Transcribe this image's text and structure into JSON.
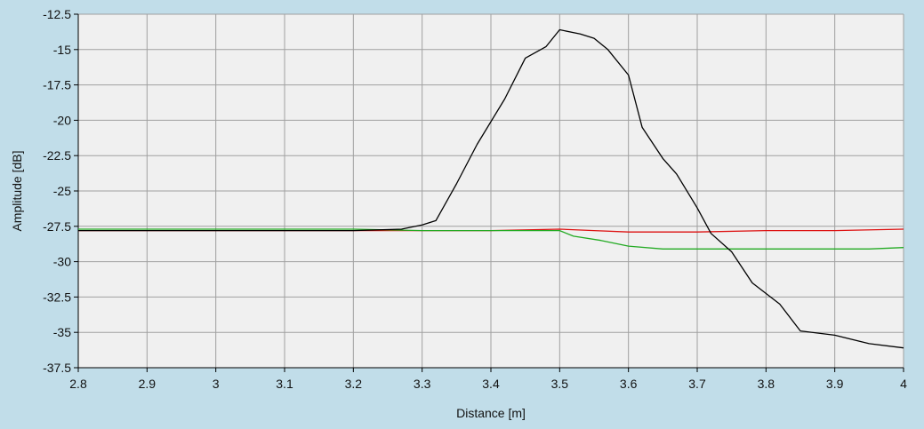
{
  "chart_data": {
    "type": "line",
    "title": "",
    "xlabel": "Distance [m]",
    "ylabel": "Amplitude [dB]",
    "xlim": [
      2.8,
      4.0
    ],
    "ylim": [
      -37.5,
      -12.5
    ],
    "x_ticks": [
      2.8,
      2.9,
      3.0,
      3.1,
      3.2,
      3.3,
      3.4,
      3.5,
      3.6,
      3.7,
      3.8,
      3.9,
      4.0
    ],
    "x_tick_labels": [
      "2.8",
      "2.9",
      "3",
      "3.1",
      "3.2",
      "3.3",
      "3.4",
      "3.5",
      "3.6",
      "3.7",
      "3.8",
      "3.9",
      "4"
    ],
    "y_ticks": [
      -12.5,
      -15,
      -17.5,
      -20,
      -22.5,
      -25,
      -27.5,
      -30,
      -32.5,
      -35,
      -37.5
    ],
    "y_tick_labels": [
      "-12.5",
      "-15",
      "-17.5",
      "-20",
      "-22.5",
      "-25",
      "-27.5",
      "-30",
      "-32.5",
      "-35",
      "-37.5"
    ],
    "grid": true,
    "legend": "none",
    "colors": {
      "background": "#c1dde9",
      "plot_area": "#f0f0f0",
      "grid": "#a0a0a0"
    },
    "series": [
      {
        "color": "#000000",
        "x": [
          2.8,
          3.0,
          3.2,
          3.27,
          3.3,
          3.32,
          3.35,
          3.38,
          3.42,
          3.45,
          3.48,
          3.5,
          3.53,
          3.55,
          3.57,
          3.6,
          3.62,
          3.65,
          3.67,
          3.7,
          3.72,
          3.75,
          3.78,
          3.82,
          3.85,
          3.9,
          3.95,
          4.0
        ],
        "y": [
          -27.8,
          -27.8,
          -27.8,
          -27.7,
          -27.4,
          -27.1,
          -24.5,
          -21.7,
          -18.5,
          -15.6,
          -14.8,
          -13.6,
          -13.9,
          -14.2,
          -15.0,
          -16.8,
          -20.5,
          -22.7,
          -23.8,
          -26.2,
          -28.0,
          -29.3,
          -31.5,
          -33.0,
          -34.9,
          -35.2,
          -35.8,
          -36.1
        ]
      },
      {
        "color": "#dd1111",
        "x": [
          2.8,
          3.0,
          3.2,
          3.3,
          3.4,
          3.5,
          3.55,
          3.6,
          3.7,
          3.8,
          3.9,
          4.0
        ],
        "y": [
          -27.8,
          -27.8,
          -27.8,
          -27.8,
          -27.8,
          -27.7,
          -27.8,
          -27.9,
          -27.9,
          -27.8,
          -27.8,
          -27.7
        ]
      },
      {
        "color": "#22aa22",
        "x": [
          2.8,
          3.0,
          3.2,
          3.3,
          3.4,
          3.5,
          3.52,
          3.56,
          3.6,
          3.65,
          3.7,
          3.75,
          3.8,
          3.85,
          3.9,
          3.95,
          4.0
        ],
        "y": [
          -27.7,
          -27.7,
          -27.7,
          -27.8,
          -27.8,
          -27.8,
          -28.2,
          -28.5,
          -28.9,
          -29.1,
          -29.1,
          -29.1,
          -29.1,
          -29.1,
          -29.1,
          -29.1,
          -29.0
        ]
      }
    ]
  }
}
